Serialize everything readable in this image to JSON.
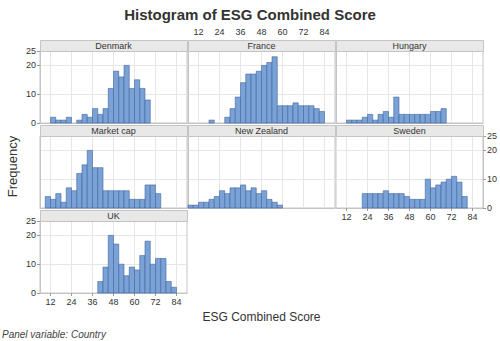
{
  "chart_data": {
    "type": "histogram",
    "title": "Histogram of ESG Combined Score",
    "xlabel": "ESG Combined Score",
    "ylabel": "Frequency",
    "annotations": [
      "Panel variable: Country"
    ],
    "color": "#7aa2d6",
    "grid": true,
    "xlim": [
      6,
      90
    ],
    "xticks": [
      12,
      24,
      36,
      48,
      60,
      72,
      84
    ],
    "ylim": [
      0,
      25
    ],
    "yticks": [
      0,
      10,
      20
    ],
    "bins": [
      6,
      9,
      12,
      15,
      18,
      21,
      24,
      27,
      30,
      33,
      36,
      39,
      42,
      45,
      48,
      51,
      54,
      57,
      60,
      63,
      66,
      69,
      72,
      75,
      78,
      81,
      84,
      87,
      90
    ],
    "series": [
      {
        "name": "Denmark",
        "values": [
          0,
          0,
          2,
          1,
          1,
          2,
          0,
          1,
          3,
          2,
          5,
          3,
          5,
          12,
          18,
          16,
          20,
          12,
          15,
          12,
          8,
          0,
          0,
          0,
          0,
          0,
          0,
          0
        ]
      },
      {
        "name": "France",
        "values": [
          0,
          0,
          0,
          0,
          1,
          0,
          0,
          2,
          5,
          9,
          14,
          17,
          17,
          18,
          20,
          21,
          23,
          6,
          6,
          6,
          7,
          6,
          6,
          6,
          5,
          4,
          0,
          0
        ]
      },
      {
        "name": "Hungary",
        "values": [
          0,
          0,
          1,
          1,
          1,
          2,
          3,
          1,
          3,
          4,
          2,
          9,
          3,
          3,
          3,
          3,
          3,
          3,
          4,
          4,
          5,
          0,
          0,
          0,
          0,
          0,
          0,
          0
        ]
      },
      {
        "name": "Market cap",
        "values": [
          0,
          4,
          3,
          5,
          2,
          7,
          6,
          12,
          15,
          20,
          14,
          14,
          6,
          6,
          6,
          6,
          6,
          3,
          3,
          3,
          8,
          8,
          5,
          0,
          0,
          0,
          0,
          0
        ]
      },
      {
        "name": "New Zealand",
        "values": [
          1,
          1,
          2,
          2,
          3,
          4,
          6,
          5,
          7,
          7,
          8,
          6,
          7,
          5,
          6,
          3,
          2,
          1,
          0,
          0,
          0,
          0,
          0,
          0,
          0,
          0,
          0,
          0
        ]
      },
      {
        "name": "Sweden",
        "values": [
          0,
          0,
          0,
          0,
          0,
          5,
          5,
          5,
          5,
          6,
          5,
          5,
          5,
          4,
          3,
          3,
          3,
          10,
          7,
          8,
          9,
          10,
          11,
          9,
          4,
          0,
          0,
          0
        ]
      },
      {
        "name": "UK",
        "values": [
          0,
          0,
          0,
          0,
          0,
          0,
          0,
          0,
          0,
          0,
          0,
          4,
          9,
          20,
          17,
          10,
          6,
          9,
          8,
          13,
          18,
          10,
          12,
          12,
          4,
          2,
          0,
          0
        ]
      }
    ]
  }
}
